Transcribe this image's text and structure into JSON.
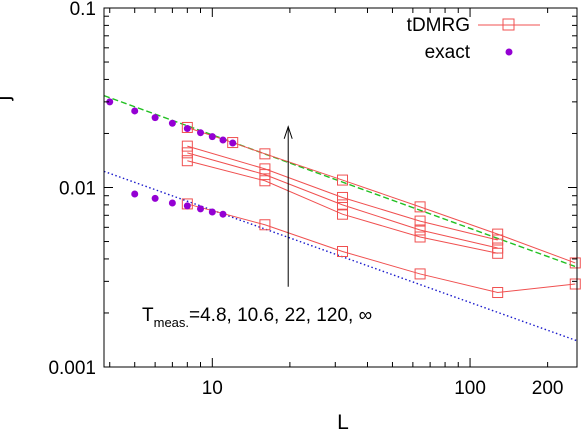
{
  "chart_data": {
    "type": "line",
    "xscale": "log",
    "yscale": "log",
    "xlim": [
      3.8,
      260
    ],
    "ylim": [
      0.001,
      0.1
    ],
    "xlabel": "L",
    "ylabel": "j",
    "xticks": [
      {
        "value": 10,
        "label": "10"
      },
      {
        "value": 100,
        "label": "100"
      },
      {
        "value": 200,
        "label": "200"
      }
    ],
    "yticks": [
      {
        "value": 0.001,
        "label": "0.001"
      },
      {
        "value": 0.01,
        "label": "0.01"
      },
      {
        "value": 0.1,
        "label": "0.1"
      }
    ],
    "legend": {
      "placement": "top-right",
      "entries": [
        {
          "label": "tDMRG",
          "marker": "square",
          "color": "#f05050"
        },
        {
          "label": "exact",
          "marker": "dot",
          "color": "#9400d3"
        }
      ]
    },
    "series": [
      {
        "name": "tDMRG",
        "color": "#f05050",
        "marker": "square",
        "x": [
          8,
          16,
          32,
          64,
          128,
          256
        ],
        "y": [
          0.0081,
          0.0062,
          0.0044,
          0.0033,
          0.0026,
          0.0029
        ]
      },
      {
        "color": "#f05050",
        "marker": "square",
        "x": [
          8,
          16,
          32,
          64,
          128
        ],
        "y": [
          0.0141,
          0.0109,
          0.0071,
          0.0053,
          0.0043
        ]
      },
      {
        "color": "#f05050",
        "marker": "square",
        "x": [
          8,
          16,
          32,
          64,
          128
        ],
        "y": [
          0.0156,
          0.0118,
          0.008,
          0.0058,
          0.0046
        ]
      },
      {
        "color": "#f05050",
        "marker": "square",
        "x": [
          8,
          16,
          32,
          64,
          128
        ],
        "y": [
          0.017,
          0.0127,
          0.0088,
          0.0065,
          0.0051
        ]
      },
      {
        "color": "#f05050",
        "marker": "square",
        "x": [
          8,
          12,
          16,
          32,
          64,
          128,
          256
        ],
        "y": [
          0.0216,
          0.0178,
          0.0154,
          0.011,
          0.0078,
          0.0055,
          0.0038
        ]
      },
      {
        "name": "exact",
        "color": "#9400d3",
        "marker": "dot",
        "x": [
          4,
          5,
          6,
          7,
          8,
          9,
          10,
          11,
          12
        ],
        "y": [
          0.03,
          0.0267,
          0.0245,
          0.0228,
          0.0213,
          0.0202,
          0.0192,
          0.0184,
          0.0177
        ]
      },
      {
        "color": "#9400d3",
        "marker": "dot",
        "x": [
          5,
          6,
          7,
          8,
          9,
          10,
          11
        ],
        "y": [
          0.0092,
          0.0087,
          0.0082,
          0.0079,
          0.0076,
          0.0073,
          0.0071
        ]
      }
    ],
    "fit_lines": [
      {
        "color": "#22c022",
        "style": "dashed",
        "x": [
          3.8,
          260
        ],
        "y": [
          0.0325,
          0.0036
        ]
      },
      {
        "color": "#1a1acc",
        "style": "dotted",
        "x": [
          3.8,
          260
        ],
        "y": [
          0.0123,
          0.0014
        ]
      }
    ],
    "annotation": {
      "text_main": "T",
      "text_sub": "meas.",
      "text_rest": "=4.8, 10.6, 22, 120, ∞",
      "arrow": {
        "x": 19.7,
        "y_from": 0.0028,
        "y_to": 0.0218
      }
    }
  }
}
